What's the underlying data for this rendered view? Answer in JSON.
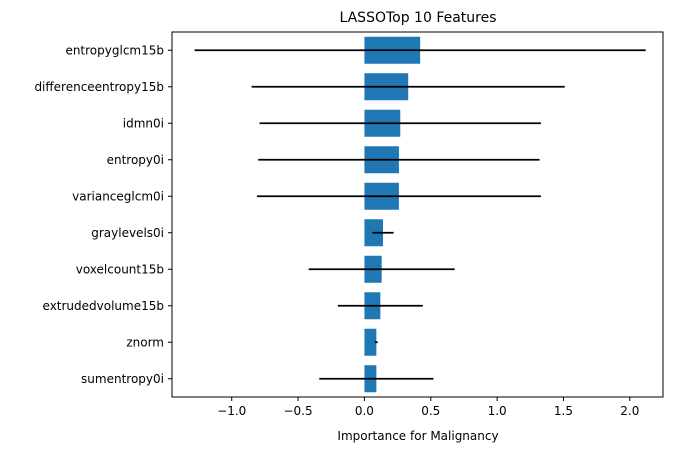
{
  "chart_data": {
    "type": "bar",
    "orientation": "horizontal",
    "title": "LASSOTop 10 Features",
    "xlabel": "Importance for Malignancy",
    "ylabel": "",
    "xlim": [
      -1.45,
      2.25
    ],
    "xticks": [
      -1.0,
      -0.5,
      0.0,
      0.5,
      1.0,
      1.5,
      2.0
    ],
    "xtick_labels": [
      "−1.0",
      "−0.5",
      "0.0",
      "0.5",
      "1.0",
      "1.5",
      "2.0"
    ],
    "grid": false,
    "categories": [
      "entropyglcm15b",
      "differenceentropy15b",
      "idmn0i",
      "entropy0i",
      "varianceglcm0i",
      "graylevels0i",
      "voxelcount15b",
      "extrudedvolume15b",
      "znorm",
      "sumentropy0i"
    ],
    "values": [
      0.42,
      0.33,
      0.27,
      0.26,
      0.26,
      0.14,
      0.13,
      0.12,
      0.09,
      0.09
    ],
    "errors": [
      1.7,
      1.18,
      1.06,
      1.06,
      1.07,
      0.08,
      0.55,
      0.32,
      0.01,
      0.43
    ],
    "bar_color": "#1f77b4",
    "error_color": "#000000"
  }
}
